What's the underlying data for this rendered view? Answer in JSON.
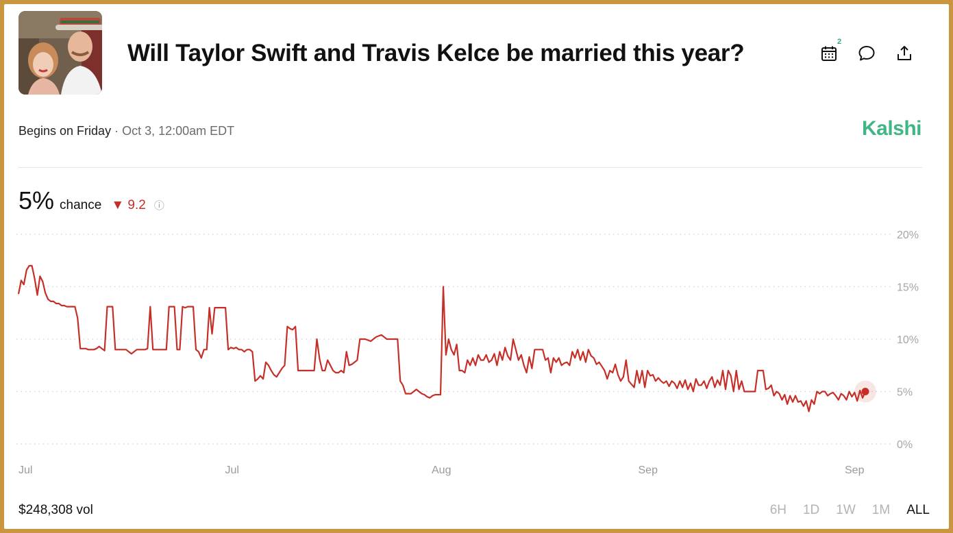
{
  "header": {
    "title": "Will Taylor Swift and Travis Kelce be married this year?",
    "calendar_badge": "2"
  },
  "meta": {
    "begins_label": "Begins on Friday",
    "begins_date": "· Oct 3, 12:00am EDT",
    "brand": "Kalshi"
  },
  "stat": {
    "value": "5%",
    "label": "chance",
    "change": "▼ 9.2",
    "info": "ⓘ"
  },
  "footer": {
    "volume": "$248,308 vol",
    "ranges": [
      "6H",
      "1D",
      "1W",
      "1M",
      "ALL"
    ],
    "active_range": "ALL"
  },
  "colors": {
    "line": "#c62f27",
    "brand": "#3fb684",
    "frame": "#c9963f"
  },
  "chart_data": {
    "type": "line",
    "y_tick_labels": [
      "20%",
      "15%",
      "10%",
      "5%",
      "0%"
    ],
    "y_ticks": [
      20,
      15,
      10,
      5,
      0
    ],
    "ylim": [
      0,
      20
    ],
    "x_tick_labels": [
      "Jul",
      "Jul",
      "Aug",
      "Sep",
      "Sep"
    ],
    "x_tick_pos": [
      0.0,
      0.25,
      0.5,
      0.75,
      1.0
    ],
    "grid": true,
    "series": [
      {
        "values": [
          14.3,
          15.6,
          15.2,
          16.6,
          17.0,
          17.0,
          15.8,
          14.2,
          16.0,
          15.5,
          14.4,
          13.8,
          13.6,
          13.6,
          13.4,
          13.4,
          13.2,
          13.2,
          13.1,
          13.1,
          13.1,
          13.1,
          12.0,
          9.1,
          9.1,
          9.1,
          9.0,
          9.0,
          9.0,
          9.1,
          9.3,
          9.1,
          8.9,
          13.1,
          13.1,
          13.1,
          9.0,
          9.0,
          9.0,
          9.0,
          9.0,
          8.8,
          8.6,
          8.8,
          9.0,
          9.0,
          9.0,
          9.0,
          9.1,
          13.1,
          9.0,
          9.0,
          9.0,
          9.0,
          9.0,
          9.0,
          13.1,
          13.1,
          13.1,
          9.0,
          9.0,
          13.1,
          13.0,
          13.1,
          13.1,
          13.1,
          9.0,
          8.8,
          8.2,
          9.0,
          9.0,
          13.0,
          10.5,
          13.0,
          13.0,
          13.0,
          13.0,
          13.0,
          9.0,
          9.2,
          9.1,
          9.2,
          9.0,
          9.0,
          8.8,
          9.0,
          9.0,
          8.8,
          6.0,
          6.2,
          6.5,
          6.2,
          7.8,
          7.5,
          7.0,
          6.6,
          6.4,
          6.8,
          7.2,
          7.5,
          11.2,
          11.0,
          10.9,
          11.2,
          7.0,
          7.0,
          7.0,
          7.0,
          7.0,
          7.0,
          7.0,
          10.0,
          8.1,
          7.0,
          7.0,
          8.0,
          7.5,
          7.0,
          6.8,
          6.8,
          7.0,
          6.8,
          8.8,
          7.5,
          7.6,
          7.8,
          8.0,
          10.0,
          10.0,
          10.0,
          9.9,
          9.8,
          10.0,
          10.2,
          10.3,
          10.4,
          10.2,
          10.0,
          10.0,
          10.0,
          10.0,
          10.0,
          6.0,
          5.6,
          4.8,
          4.8,
          4.8,
          5.0,
          5.2,
          5.0,
          4.8,
          4.7,
          4.5,
          4.4,
          4.6,
          4.7,
          4.7,
          4.7,
          15.0,
          8.5,
          10.0,
          9.0,
          8.5,
          9.5,
          7.0,
          7.0,
          6.8,
          8.0,
          7.5,
          8.2,
          7.5,
          8.5,
          8.0,
          8.0,
          8.5,
          7.8,
          8.0,
          8.6,
          7.5,
          8.8,
          8.0,
          9.2,
          8.4,
          8.0,
          10.0,
          9.0,
          8.0,
          8.5,
          7.5,
          6.8,
          8.3,
          7.2,
          9.0,
          9.0,
          9.0,
          9.0,
          8.0,
          8.2,
          6.8,
          8.2,
          7.8,
          8.2,
          7.5,
          7.7,
          7.8,
          7.5,
          8.8,
          8.2,
          9.0,
          8.0,
          8.8,
          7.8,
          9.0,
          8.4,
          8.2,
          7.6,
          7.8,
          7.4,
          7.0,
          6.2,
          7.0,
          6.8,
          7.6,
          6.6,
          6.0,
          6.4,
          8.0,
          6.0,
          5.7,
          5.4,
          7.0,
          5.8,
          7.0,
          5.4,
          7.0,
          6.5,
          6.6,
          6.0,
          6.3,
          6.0,
          5.8,
          6.0,
          5.5,
          6.0,
          5.8,
          5.3,
          6.0,
          5.4,
          6.1,
          5.2,
          5.8,
          5.0,
          6.2,
          5.6,
          5.6,
          6.0,
          5.3,
          6.0,
          6.4,
          5.4,
          6.1,
          5.6,
          7.0,
          5.2,
          7.0,
          6.5,
          5.0,
          7.0,
          5.2,
          6.0,
          5.0,
          5.0,
          5.0,
          5.0,
          5.0,
          7.0,
          7.0,
          7.0,
          5.2,
          5.3,
          5.6,
          4.6,
          5.0,
          4.8,
          4.2,
          4.7,
          3.8,
          4.6,
          4.0,
          4.6,
          4.0,
          4.1,
          3.6,
          4.1,
          3.1,
          4.2,
          3.8,
          5.0,
          4.8,
          5.0,
          5.0,
          4.6,
          4.8,
          4.9,
          4.6,
          4.2,
          4.8,
          4.6,
          4.2,
          5.0,
          4.5,
          4.9,
          4.1,
          5.1,
          4.4,
          5.0
        ]
      }
    ]
  }
}
